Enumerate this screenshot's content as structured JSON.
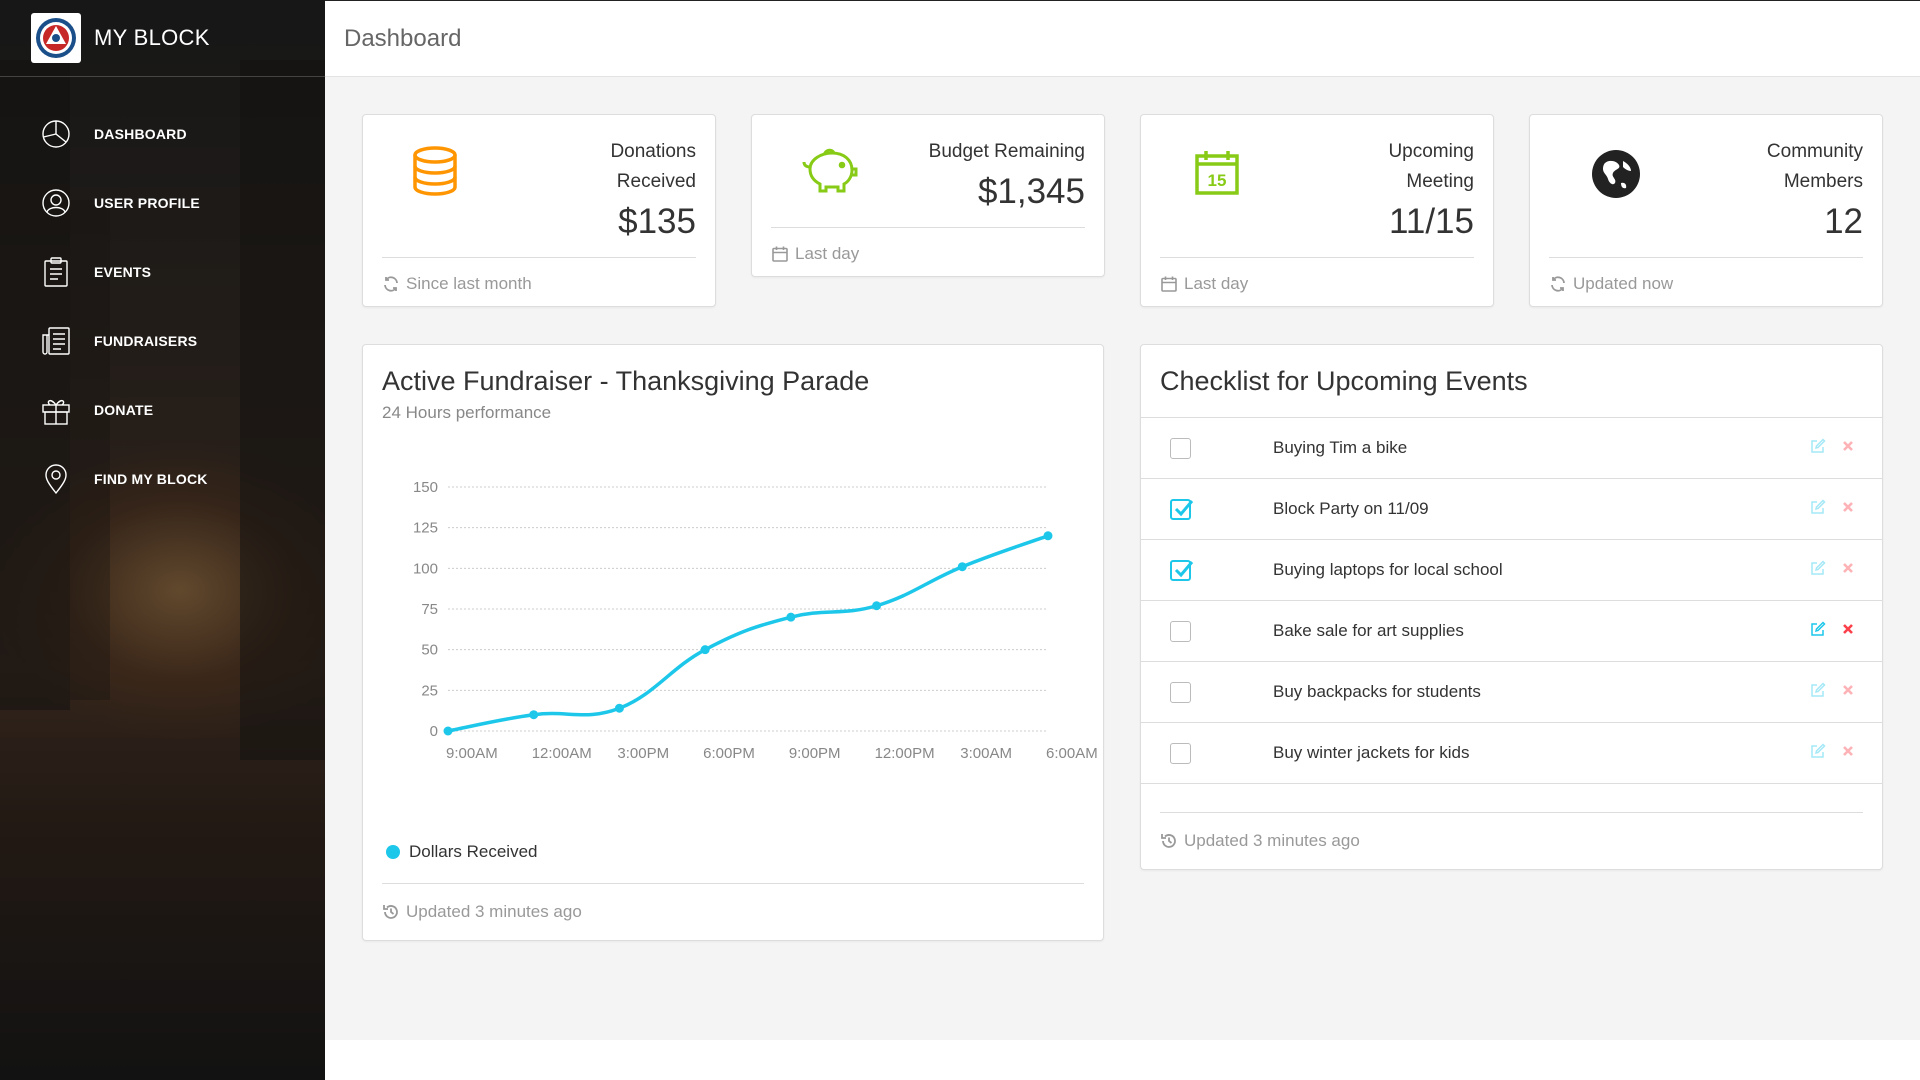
{
  "brand": {
    "title": "MY BLOCK"
  },
  "nav": [
    {
      "id": "dashboard",
      "label": "DASHBOARD",
      "icon": "pie-chart-icon"
    },
    {
      "id": "user-profile",
      "label": "USER PROFILE",
      "icon": "user-icon"
    },
    {
      "id": "events",
      "label": "EVENTS",
      "icon": "clipboard-icon"
    },
    {
      "id": "fundraisers",
      "label": "FUNDRAISERS",
      "icon": "news-icon"
    },
    {
      "id": "donate",
      "label": "DONATE",
      "icon": "gift-icon"
    },
    {
      "id": "find-my-block",
      "label": "FIND MY BLOCK",
      "icon": "map-pin-icon"
    }
  ],
  "header": {
    "title": "Dashboard"
  },
  "stats": [
    {
      "label_line1": "Donations",
      "label_line2": "Received",
      "value": "$135",
      "footer": "Since last month",
      "footer_icon": "refresh-icon",
      "icon": "database-icon",
      "icon_color": "#ff9500"
    },
    {
      "label_line1": "Budget Remaining",
      "label_line2": "",
      "value": "$1,345",
      "footer": "Last day",
      "footer_icon": "calendar-icon",
      "icon": "piggy-bank-icon",
      "icon_color": "#87cb16"
    },
    {
      "label_line1": "Upcoming",
      "label_line2": "Meeting",
      "value": "11/15",
      "footer": "Last day",
      "footer_icon": "calendar-icon",
      "icon": "calendar-15-icon",
      "icon_color": "#87cb16"
    },
    {
      "label_line1": "Community",
      "label_line2": "Members",
      "value": "12",
      "footer": "Updated now",
      "footer_icon": "refresh-icon",
      "icon": "globe-icon",
      "icon_color": "#222222"
    }
  ],
  "fundraiser": {
    "title": "Active Fundraiser - Thanksgiving Parade",
    "subtitle": "24 Hours performance",
    "legend": "Dollars Received",
    "footer": "Updated 3 minutes ago",
    "chart_data": {
      "type": "line",
      "x": [
        "9:00AM",
        "12:00AM",
        "3:00PM",
        "6:00PM",
        "9:00PM",
        "12:00PM",
        "3:00AM",
        "6:00AM"
      ],
      "series": [
        {
          "name": "Dollars Received",
          "values": [
            0,
            10,
            14,
            50,
            70,
            77,
            101,
            120
          ],
          "color": "#1dc7ea"
        }
      ],
      "yticks": [
        0,
        25,
        50,
        75,
        100,
        125,
        150
      ],
      "ylim": [
        0,
        150
      ],
      "grid": true,
      "legend_position": "bottom-left"
    }
  },
  "tasks": {
    "title": "Checklist for Upcoming Events",
    "footer": "Updated 3 minutes ago",
    "items": [
      {
        "text": "Buying Tim a bike",
        "checked": false
      },
      {
        "text": "Block Party on 11/09",
        "checked": true
      },
      {
        "text": "Buying laptops for local school",
        "checked": true
      },
      {
        "text": "Bake sale for art supplies",
        "checked": false
      },
      {
        "text": "Buy backpacks for students",
        "checked": false
      },
      {
        "text": "Buy winter jackets for kids",
        "checked": false
      }
    ],
    "colors": {
      "edit": "#1dc7ea",
      "remove": "#fb404b",
      "check": "#1dc7ea"
    }
  }
}
